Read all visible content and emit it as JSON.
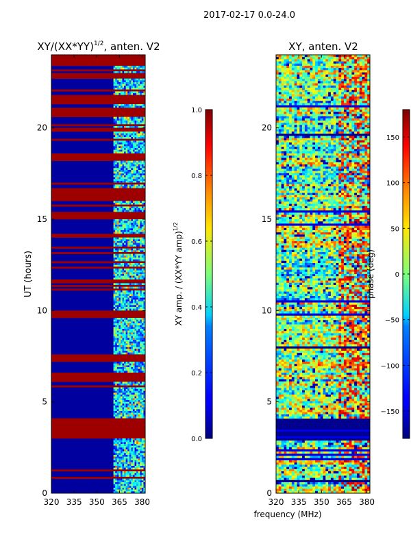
{
  "suptitle": "2017-02-17 0.0-24.0",
  "xlabel_shared": "frequency (MHz)",
  "chart_data": [
    {
      "type": "heatmap",
      "title_main": "XY/(XX*YY)",
      "title_sup": "1/2",
      "title_rest": ", anten. V2",
      "xlabel": "",
      "ylabel": "UT (hours)",
      "xlim": [
        320,
        382
      ],
      "ylim": [
        0,
        24
      ],
      "xticks": [
        320,
        335,
        350,
        365,
        380
      ],
      "yticks": [
        0,
        5,
        10,
        15,
        20
      ],
      "colorbar": {
        "label_main": "XY amp. / (XX*YY amp)",
        "label_sup": "1/2",
        "range": [
          0.0,
          1.0
        ],
        "ticks": [
          "0.0",
          "0.2",
          "0.4",
          "0.6",
          "0.8",
          "1.0"
        ],
        "colormap": "jet"
      },
      "features": {
        "saturated_bands_hours": [
          [
            3.0,
            4.1
          ],
          [
            6.2,
            6.6
          ],
          [
            7.3,
            7.6
          ],
          [
            9.6,
            10.0
          ],
          [
            11.5,
            11.7
          ],
          [
            14.0,
            14.2
          ],
          [
            15.0,
            15.4
          ],
          [
            16.0,
            16.7
          ],
          [
            18.2,
            18.6
          ],
          [
            20.6,
            21.1
          ],
          [
            21.3,
            21.8
          ],
          [
            22.7,
            23.0
          ],
          [
            23.4,
            24.0
          ]
        ],
        "high_amplitude_freq_range_mhz": [
          361,
          382
        ],
        "background_value": 0.03
      }
    },
    {
      "type": "heatmap",
      "title_main": "XY, anten. V2",
      "xlabel": "frequency (MHz)",
      "ylabel": "",
      "xlim": [
        320,
        382
      ],
      "ylim": [
        0,
        24
      ],
      "xticks": [
        320,
        335,
        350,
        365,
        380
      ],
      "yticks": [
        0,
        5,
        10,
        15,
        20
      ],
      "colorbar": {
        "label_main": "phase (deg)",
        "range": [
          -180,
          180
        ],
        "ticks": [
          "−150",
          "−100",
          "−50",
          "0",
          "50",
          "100",
          "150"
        ],
        "tick_values": [
          -150,
          -100,
          -50,
          0,
          50,
          100,
          150
        ],
        "colormap": "jet"
      },
      "features": {
        "uniform_band_hours": [
          [
            2.9,
            4.1
          ]
        ],
        "uniform_band_value_deg": -175,
        "warm_patch_freq_range_mhz": [
          361,
          382
        ]
      }
    }
  ]
}
